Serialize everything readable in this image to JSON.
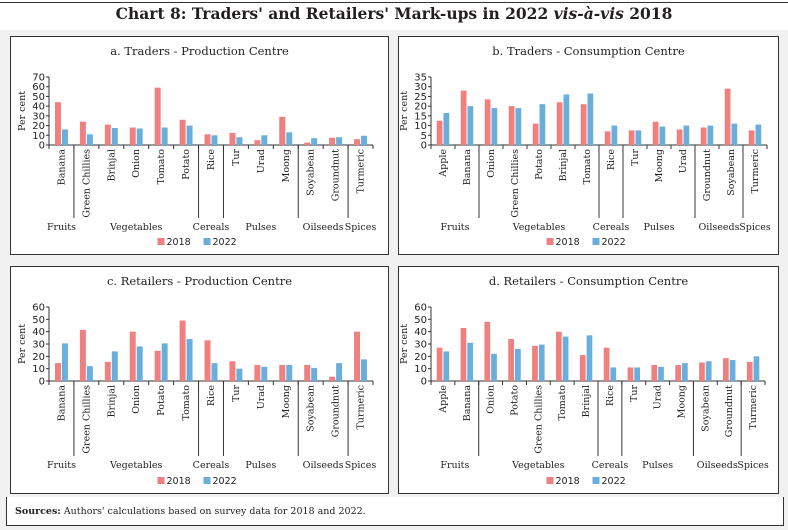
{
  "title_pre": "Chart 8: Traders' and Retailers' Mark-ups in 2022 ",
  "title_ital": "vis-à-vis",
  "title_post": " 2018",
  "source_label": "Sources:",
  "source_text": " Authors' calculations based on survey data for 2018 and 2022.",
  "colors": {
    "s2018": "#f08080",
    "s2022": "#6aafdc"
  },
  "chart_data": [
    {
      "type": "bar",
      "title": "a. Traders - Production Centre",
      "ylabel": "Per cent",
      "ylim": [
        0,
        70
      ],
      "yticks": [
        0,
        10,
        20,
        30,
        40,
        50,
        60,
        70
      ],
      "categories": [
        "Banana",
        "Green Chillies",
        "Brinjal",
        "Onion",
        "Tomato",
        "Potato",
        "Rice",
        "Tur",
        "Urad",
        "Moong",
        "Soyabean",
        "Groundnut",
        "Turmeric"
      ],
      "groups": [
        {
          "label": "Fruits",
          "count": 1
        },
        {
          "label": "Vegetables",
          "count": 5
        },
        {
          "label": "Cereals",
          "count": 1
        },
        {
          "label": "Pulses",
          "count": 3
        },
        {
          "label": "Oilseeds",
          "count": 2
        },
        {
          "label": "Spices",
          "count": 1
        }
      ],
      "series": [
        {
          "name": "2018",
          "values": [
            44,
            24,
            21,
            18,
            59,
            26,
            11,
            12.5,
            5,
            29,
            2.5,
            7.5,
            6
          ]
        },
        {
          "name": "2022",
          "values": [
            16,
            11,
            17.5,
            17,
            18,
            20,
            10,
            8,
            10,
            13,
            7,
            8,
            9.5
          ]
        }
      ],
      "legend": "bottom"
    },
    {
      "type": "bar",
      "title": "b. Traders - Consumption Centre",
      "ylabel": "Per cent",
      "ylim": [
        0,
        35
      ],
      "yticks": [
        0,
        5,
        10,
        15,
        20,
        25,
        30,
        35
      ],
      "categories": [
        "Apple",
        "Banana",
        "Onion",
        "Green Chillies",
        "Potato",
        "Brinjal",
        "Tomato",
        "Rice",
        "Tur",
        "Moong",
        "Urad",
        "Groundnut",
        "Soyabean",
        "Turmeric"
      ],
      "groups": [
        {
          "label": "Fruits",
          "count": 2
        },
        {
          "label": "Vegetables",
          "count": 5
        },
        {
          "label": "Cereals",
          "count": 1
        },
        {
          "label": "Pulses",
          "count": 3
        },
        {
          "label": "Oilseeds",
          "count": 2
        },
        {
          "label": "Spices",
          "count": 1
        }
      ],
      "series": [
        {
          "name": "2018",
          "values": [
            12.5,
            28,
            23.5,
            20,
            11,
            22,
            21,
            7,
            7.5,
            12,
            8,
            9,
            29,
            7.5
          ]
        },
        {
          "name": "2022",
          "values": [
            16.5,
            20,
            19,
            19,
            21,
            26,
            26.5,
            10,
            7.5,
            9.5,
            10,
            10,
            11,
            10.5
          ]
        }
      ],
      "legend": "bottom"
    },
    {
      "type": "bar",
      "title": "c. Retailers - Production Centre",
      "ylabel": "Per cent",
      "ylim": [
        0,
        60
      ],
      "yticks": [
        0,
        10,
        20,
        30,
        40,
        50,
        60
      ],
      "categories": [
        "Banana",
        "Green Chillies",
        "Brinjal",
        "Onion",
        "Potato",
        "Tomato",
        "Rice",
        "Tur",
        "Urad",
        "Moong",
        "Soyabean",
        "Groundnut",
        "Turmeric"
      ],
      "groups": [
        {
          "label": "Fruits",
          "count": 1
        },
        {
          "label": "Vegetables",
          "count": 5
        },
        {
          "label": "Cereals",
          "count": 1
        },
        {
          "label": "Pulses",
          "count": 3
        },
        {
          "label": "Oilseeds",
          "count": 2
        },
        {
          "label": "Spices",
          "count": 1
        }
      ],
      "series": [
        {
          "name": "2018",
          "values": [
            14.5,
            41.5,
            15.5,
            40,
            24.5,
            49,
            33,
            16,
            13,
            13,
            13,
            3.5,
            40
          ]
        },
        {
          "name": "2022",
          "values": [
            30.5,
            12,
            24,
            28,
            30.5,
            34,
            14.5,
            10,
            11.5,
            13,
            10.5,
            14.5,
            17.5
          ]
        }
      ],
      "legend": "bottom"
    },
    {
      "type": "bar",
      "title": "d. Retailers - Consumption Centre",
      "ylabel": "Per cent",
      "ylim": [
        0,
        60
      ],
      "yticks": [
        0,
        10,
        20,
        30,
        40,
        50,
        60
      ],
      "categories": [
        "Apple",
        "Banana",
        "Onion",
        "Potato",
        "Green Chillies",
        "Tomato",
        "Brinjal",
        "Rice",
        "Tur",
        "Urad",
        "Moong",
        "Soyabean",
        "Groundnut",
        "Turmeric"
      ],
      "groups": [
        {
          "label": "Fruits",
          "count": 2
        },
        {
          "label": "Vegetables",
          "count": 5
        },
        {
          "label": "Cereals",
          "count": 1
        },
        {
          "label": "Pulses",
          "count": 3
        },
        {
          "label": "Oilseeds",
          "count": 2
        },
        {
          "label": "Spices",
          "count": 1
        }
      ],
      "series": [
        {
          "name": "2018",
          "values": [
            27,
            43,
            48,
            34,
            28.5,
            40,
            21,
            27,
            11,
            13,
            13,
            15,
            18.5,
            15.5
          ]
        },
        {
          "name": "2022",
          "values": [
            24,
            31,
            22,
            26,
            29.5,
            36,
            37,
            11,
            11,
            11.5,
            14.5,
            16,
            17,
            20
          ]
        }
      ],
      "legend": "bottom"
    }
  ]
}
